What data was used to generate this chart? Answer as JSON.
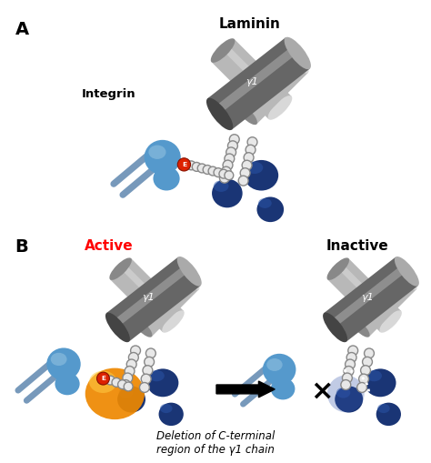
{
  "bg_color": "#ffffff",
  "panel_A": {
    "label": "A",
    "laminin_label": "Laminin",
    "integrin_label": "Integrin",
    "gamma1_label": "γ1"
  },
  "panel_B_active": {
    "label": "B",
    "active_label": "Active",
    "gamma1_label": "γ1"
  },
  "panel_B_inactive": {
    "inactive_label": "Inactive",
    "gamma1_label": "γ1"
  },
  "arrow_label": "Deletion of C-terminal\nregion of the γ1 chain",
  "colors": {
    "dark_gray": "#666666",
    "mid_gray": "#888888",
    "light_gray": "#b8b8b8",
    "lighter_gray": "#d8d8d8",
    "dark_blue": "#1a3575",
    "mid_blue": "#2a55aa",
    "light_blue": "#5588bb",
    "lighter_blue": "#88aacc",
    "sky_blue": "#7799bb",
    "integrin_blue": "#5599cc",
    "integrin_light": "#88bbdd",
    "orange": "#ee8800",
    "orange_light": "#ffcc44",
    "red": "#cc2200",
    "white": "#ffffff",
    "bead_fill": "#e8e8e8",
    "bead_edge": "#888888",
    "black": "#000000"
  }
}
